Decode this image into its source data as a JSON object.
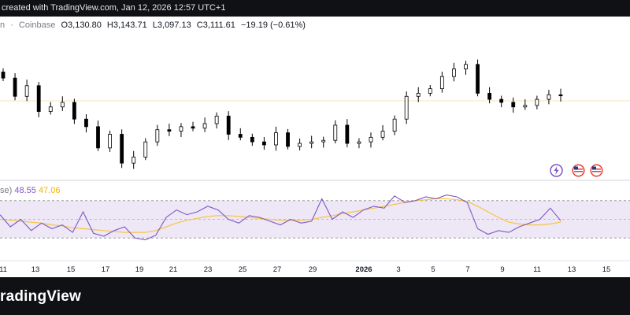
{
  "watermark_text": "created with TradingView.com, Jan 12, 2026 12:57 UTC+1",
  "symbol_partial": "n",
  "separator": "·",
  "exchange": "Coinbase",
  "ohlc": {
    "o_label": "O",
    "o_value": "3,130.80",
    "h_label": "H",
    "h_value": "3,143.71",
    "l_label": "L",
    "l_value": "3,097.13",
    "c_label": "C",
    "c_value": "3,111.61",
    "change": "−19.19 (−0.61%)"
  },
  "rsi_legend": {
    "prefix": "se)",
    "rsi_value": "48.55",
    "ma_value": "47.06"
  },
  "brand": "radingView",
  "icons": [
    "lightning-icon",
    "us-flag-icon",
    "us-flag-icon"
  ],
  "colors": {
    "up": "#089981",
    "down": "#000000",
    "rsi_line": "#7e57c2",
    "rsi_ma": "#f7c548",
    "rsi_band": "#ede7f6",
    "legend_rsi": "#7e57c2",
    "legend_ma": "#f2b400"
  },
  "chart_data": {
    "type": "candlestick",
    "x_ticks": [
      "11",
      "13",
      "15",
      "17",
      "19",
      "21",
      "23",
      "25",
      "27",
      "29",
      "2026",
      "3",
      "5",
      "7",
      "9",
      "11",
      "13",
      "15"
    ],
    "price_series": [
      3170,
      3110,
      3145,
      3060,
      3075,
      3090,
      3035,
      3010,
      2940,
      2985,
      2890,
      2910,
      2960,
      3000,
      2995,
      3010,
      3005,
      3020,
      3045,
      2985,
      2975,
      2960,
      2950,
      2990,
      2945,
      2955,
      2960,
      2965,
      3015,
      2955,
      2960,
      2975,
      2995,
      3035,
      3110,
      3120,
      3135,
      3175,
      3200,
      3215,
      3120,
      3100,
      3090,
      3075,
      3080,
      3100,
      3115,
      3111.61
    ],
    "rsi": {
      "upper_band": 70,
      "mid": 50,
      "lower_band": 30,
      "rsi_values": [
        55,
        42,
        50,
        38,
        46,
        40,
        44,
        36,
        58,
        35,
        32,
        38,
        42,
        30,
        28,
        33,
        52,
        60,
        55,
        58,
        64,
        60,
        50,
        46,
        54,
        52,
        48,
        44,
        50,
        46,
        48,
        72,
        50,
        58,
        52,
        60,
        64,
        62,
        75,
        68,
        70,
        74,
        72,
        76,
        74,
        68,
        40,
        34,
        38,
        36,
        42,
        46,
        50,
        62,
        48.55
      ],
      "ma_values": [
        50,
        49,
        48,
        47,
        46,
        44,
        43,
        41,
        40,
        39,
        38,
        37,
        36,
        36,
        36,
        38,
        42,
        46,
        49,
        51,
        53,
        54,
        54,
        53,
        52,
        51,
        50,
        49,
        49,
        49,
        50,
        52,
        54,
        56,
        58,
        60,
        62,
        64,
        66,
        68,
        70,
        71,
        72,
        72,
        71,
        69,
        64,
        58,
        52,
        47,
        45,
        44,
        44,
        45,
        47.06
      ]
    }
  }
}
